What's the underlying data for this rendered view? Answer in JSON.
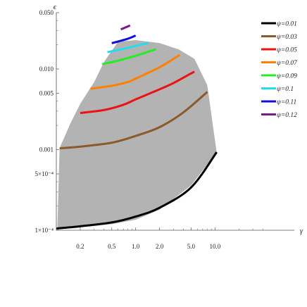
{
  "chart_data": {
    "type": "line",
    "xlabel": "γ",
    "ylabel": "ϵ",
    "x_scale": "log",
    "y_scale": "log",
    "xlim": [
      0.1,
      100
    ],
    "ylim": [
      0.0001,
      0.05
    ],
    "x_ticks": [
      {
        "value": 0.2,
        "label": "0.2"
      },
      {
        "value": 0.5,
        "label": "0.5"
      },
      {
        "value": 1.0,
        "label": "1.0"
      },
      {
        "value": 2.0,
        "label": "2.0"
      },
      {
        "value": 5.0,
        "label": "5.0"
      },
      {
        "value": 10.0,
        "label": "10.0"
      }
    ],
    "y_ticks": [
      {
        "value": 0.0001,
        "label": "1×10⁻⁴"
      },
      {
        "value": 0.0005,
        "label": "5×10⁻⁴"
      },
      {
        "value": 0.001,
        "label": "0.001"
      },
      {
        "value": 0.005,
        "label": "0.005"
      },
      {
        "value": 0.01,
        "label": "0.010"
      },
      {
        "value": 0.05,
        "label": "0.050"
      }
    ],
    "legend_position": "top-right",
    "region": {
      "color": "#b3b3b3",
      "boundary": [
        {
          "x": 0.103,
          "y": 0.000108
        },
        {
          "x": 0.11,
          "y": 0.00105
        },
        {
          "x": 0.15,
          "y": 0.0021
        },
        {
          "x": 0.2,
          "y": 0.0037
        },
        {
          "x": 0.3,
          "y": 0.0069
        },
        {
          "x": 0.4,
          "y": 0.0123
        },
        {
          "x": 0.6,
          "y": 0.0218
        },
        {
          "x": 1.0,
          "y": 0.0228
        },
        {
          "x": 2.0,
          "y": 0.021
        },
        {
          "x": 3.5,
          "y": 0.0175
        },
        {
          "x": 5.5,
          "y": 0.0134
        },
        {
          "x": 8.0,
          "y": 0.0063
        },
        {
          "x": 10.5,
          "y": 0.00092
        },
        {
          "x": 5.0,
          "y": 0.00036
        },
        {
          "x": 2.0,
          "y": 0.00018
        },
        {
          "x": 1.0,
          "y": 0.000135
        },
        {
          "x": 0.5,
          "y": 0.000119
        },
        {
          "x": 0.2,
          "y": 0.000111
        }
      ]
    },
    "series": [
      {
        "name": "ψ=0.01",
        "color": "#000000",
        "x": [
          0.1,
          0.2,
          0.5,
          1.0,
          2.0,
          5.0,
          10.5
        ],
        "y": [
          0.000105,
          0.000112,
          0.000125,
          0.000148,
          0.00019,
          0.00034,
          0.00093
        ]
      },
      {
        "name": "ψ=0.03",
        "color": "#8b5a2b",
        "x": [
          0.11,
          0.2,
          0.5,
          1.0,
          2.0,
          4.0,
          8.0
        ],
        "y": [
          0.00104,
          0.00109,
          0.00122,
          0.00148,
          0.0019,
          0.0029,
          0.0052
        ]
      },
      {
        "name": "ψ=0.05",
        "color": "#ee1111",
        "x": [
          0.2,
          0.4,
          0.7,
          1.0,
          2.0,
          3.0,
          5.5
        ],
        "y": [
          0.00285,
          0.0031,
          0.0036,
          0.0042,
          0.0056,
          0.0067,
          0.0093
        ]
      },
      {
        "name": "ψ=0.07",
        "color": "#ff8000",
        "x": [
          0.27,
          0.5,
          0.8,
          1.0,
          2.0,
          3.6
        ],
        "y": [
          0.0057,
          0.0062,
          0.0069,
          0.0076,
          0.0105,
          0.015
        ]
      },
      {
        "name": "ψ=0.09",
        "color": "#22ee22",
        "x": [
          0.38,
          0.6,
          1.0,
          1.8
        ],
        "y": [
          0.0115,
          0.0127,
          0.0146,
          0.0176
        ]
      },
      {
        "name": "ψ=0.1",
        "color": "#22ddee",
        "x": [
          0.44,
          0.7,
          1.0,
          1.45
        ],
        "y": [
          0.0162,
          0.0178,
          0.0193,
          0.0212
        ]
      },
      {
        "name": "ψ=0.11",
        "color": "#1111dd",
        "x": [
          0.5,
          0.8,
          1.0
        ],
        "y": [
          0.0209,
          0.0238,
          0.026
        ]
      },
      {
        "name": "ψ=0.12",
        "color": "#7a1a8a",
        "x": [
          0.65,
          0.85
        ],
        "y": [
          0.031,
          0.0347
        ]
      }
    ]
  }
}
